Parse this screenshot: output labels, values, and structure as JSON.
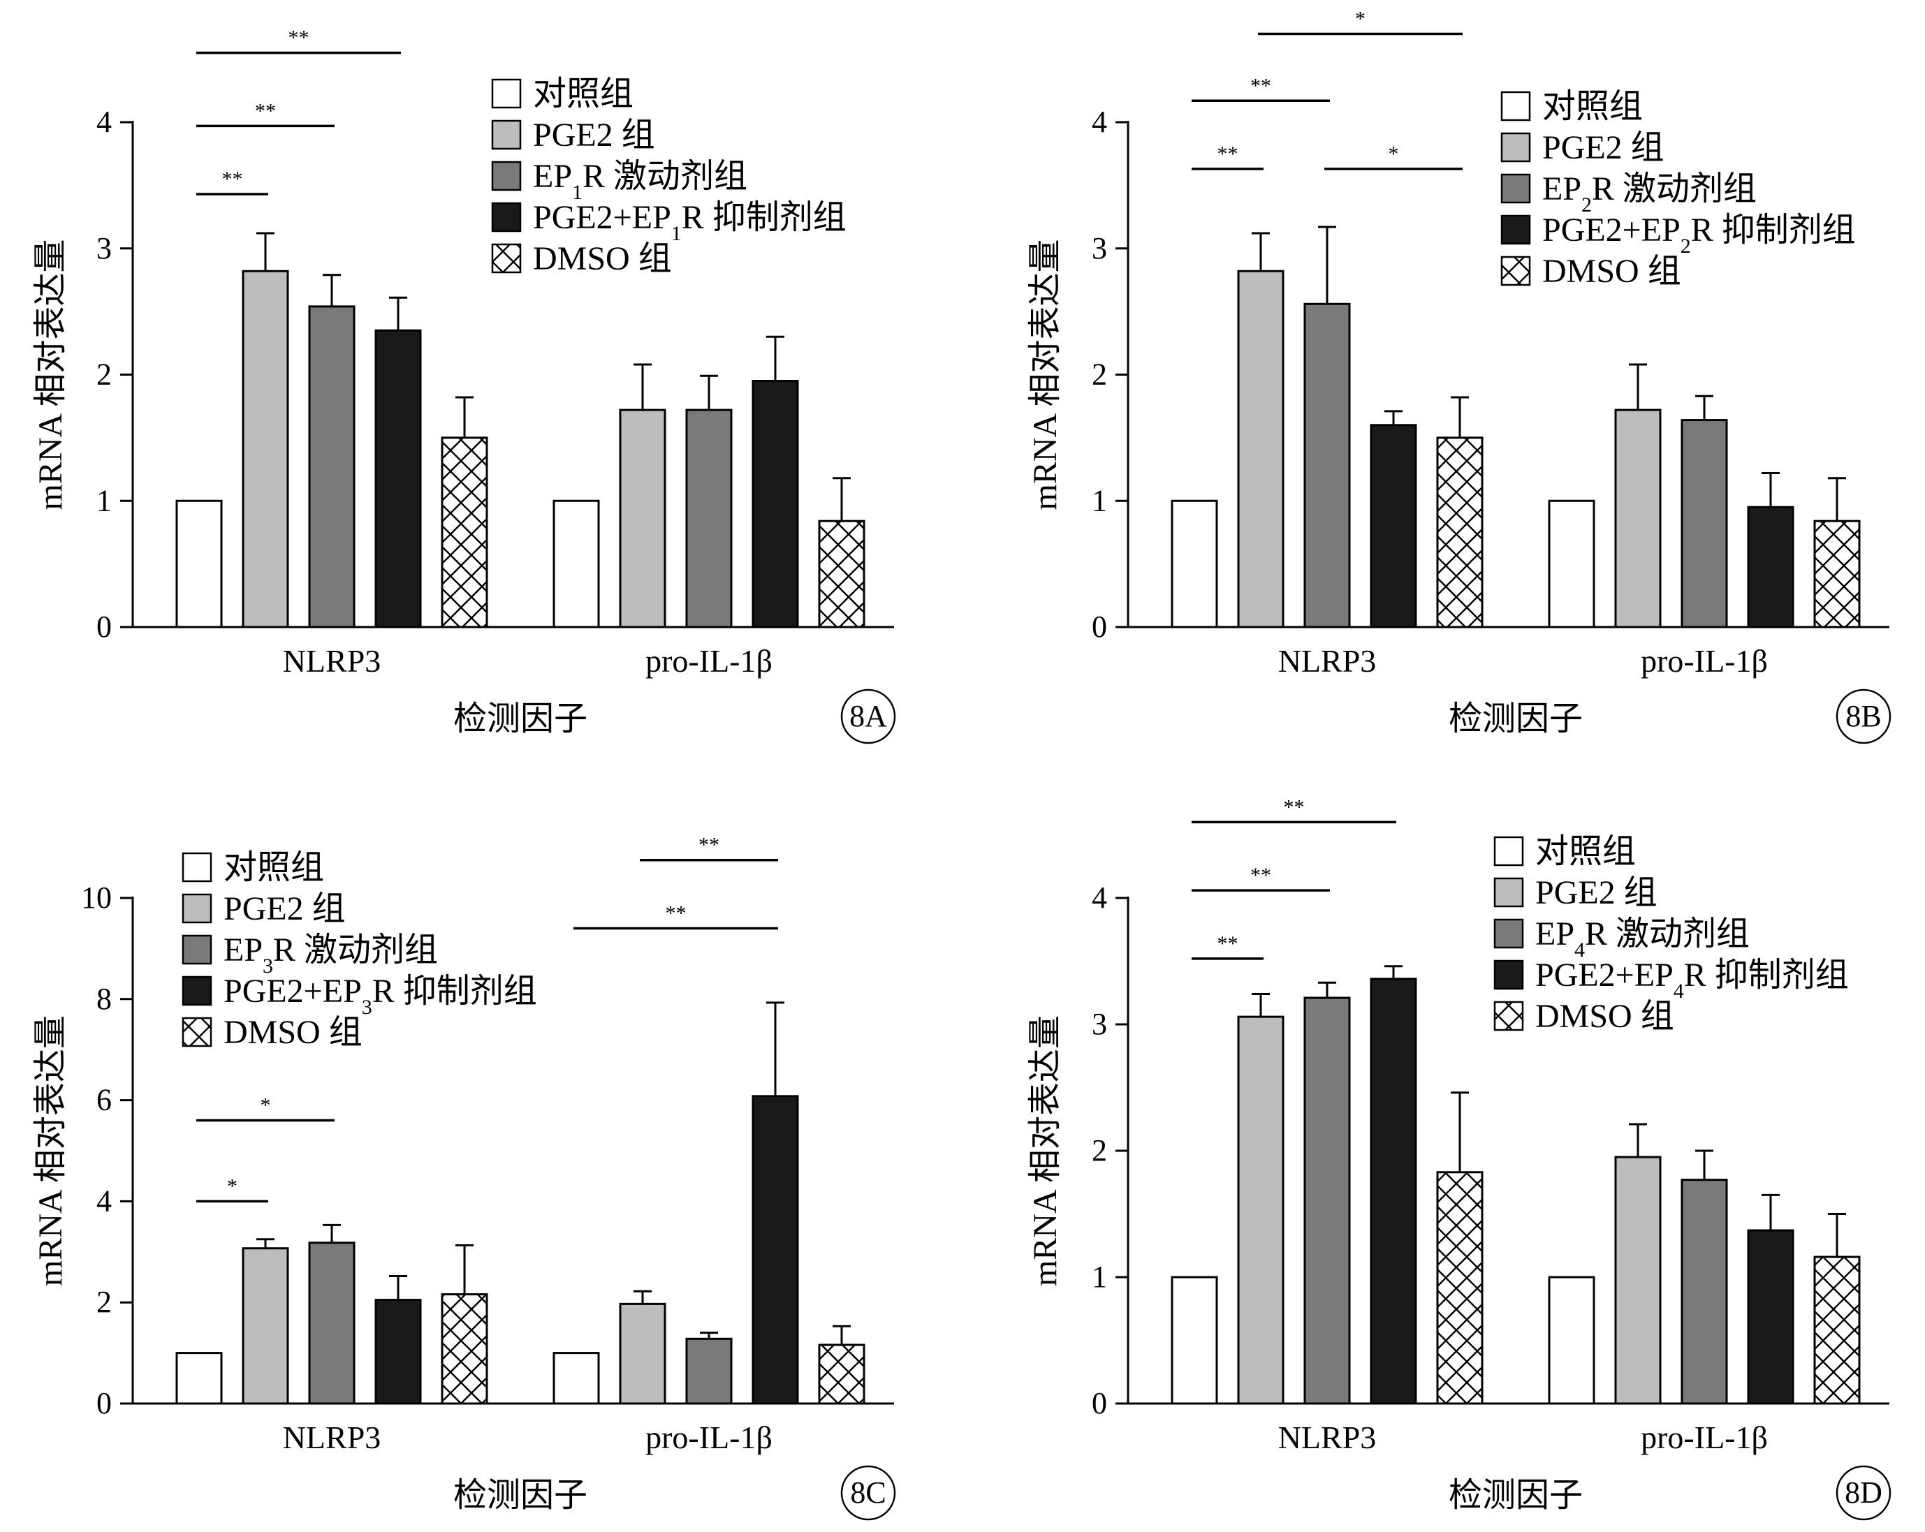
{
  "colors": {
    "control": "#ffffff",
    "pge2": "#bdbdbd",
    "agonist": "#7a7a7a",
    "inhibitor": "#1a1a1a",
    "dmso": "hatched",
    "axis": "#000000"
  },
  "chart_data": [
    {
      "id": "8A",
      "type": "bar",
      "panel_label": "8A",
      "xlabel": "检测因子",
      "ylabel": "mRNA 相对表达量",
      "ylim": [
        0,
        4
      ],
      "yticks": [
        "0",
        "1",
        "2",
        "3",
        "4"
      ],
      "categories": [
        "NLRP3",
        "pro-IL-1β"
      ],
      "legend_position": "top-right",
      "series": [
        {
          "name": "对照组",
          "fill": "control",
          "values": [
            1.0,
            1.0
          ],
          "errors": [
            0,
            0
          ]
        },
        {
          "name": "PGE2 组",
          "fill": "pge2",
          "values": [
            2.82,
            1.72
          ],
          "errors": [
            0.3,
            0.36
          ]
        },
        {
          "name": "EP₁R 激动剂组",
          "fill": "agonist",
          "values": [
            2.54,
            1.72
          ],
          "errors": [
            0.25,
            0.27
          ]
        },
        {
          "name": "PGE2+EP₁R 抑制剂组",
          "fill": "inhibitor",
          "values": [
            2.35,
            1.95
          ],
          "errors": [
            0.26,
            0.35
          ]
        },
        {
          "name": "DMSO 组",
          "fill": "dmso",
          "values": [
            1.5,
            0.84
          ],
          "errors": [
            0.32,
            0.34
          ]
        }
      ],
      "significance": [
        {
          "label": "**",
          "category": 0,
          "from_series": 0,
          "to_series": 1,
          "y": 3.43
        },
        {
          "label": "**",
          "category": 0,
          "from_series": 0,
          "to_series": 2,
          "y": 3.97
        },
        {
          "label": "**",
          "category": 0,
          "from_series": 0,
          "to_series": 3,
          "y": 4.55
        }
      ]
    },
    {
      "id": "8B",
      "type": "bar",
      "panel_label": "8B",
      "xlabel": "检测因子",
      "ylabel": "mRNA 相对表达量",
      "ylim": [
        0,
        4
      ],
      "yticks": [
        "0",
        "1",
        "2",
        "3",
        "4"
      ],
      "categories": [
        "NLRP3",
        "pro-IL-1β"
      ],
      "legend_position": "top-right",
      "series": [
        {
          "name": "对照组",
          "fill": "control",
          "values": [
            1.0,
            1.0
          ],
          "errors": [
            0,
            0
          ]
        },
        {
          "name": "PGE2 组",
          "fill": "pge2",
          "values": [
            2.82,
            1.72
          ],
          "errors": [
            0.3,
            0.36
          ]
        },
        {
          "name": "EP₂R 激动剂组",
          "fill": "agonist",
          "values": [
            2.56,
            1.64
          ],
          "errors": [
            0.61,
            0.19
          ]
        },
        {
          "name": "PGE2+EP₂R 抑制剂组",
          "fill": "inhibitor",
          "values": [
            1.6,
            0.95
          ],
          "errors": [
            0.11,
            0.27
          ]
        },
        {
          "name": "DMSO 组",
          "fill": "dmso",
          "values": [
            1.5,
            0.84
          ],
          "errors": [
            0.32,
            0.34
          ]
        }
      ],
      "significance": [
        {
          "label": "**",
          "category": 0,
          "from_series": 0,
          "to_series": 1,
          "y": 3.63
        },
        {
          "label": "*",
          "category": 0,
          "from_series": 2,
          "to_series": 4,
          "y": 3.63
        },
        {
          "label": "**",
          "category": 0,
          "from_series": 0,
          "to_series": 2,
          "y": 4.17
        },
        {
          "label": "*",
          "category": 0,
          "from_series": 1,
          "to_series": 4,
          "y": 4.7
        }
      ]
    },
    {
      "id": "8C",
      "type": "bar",
      "panel_label": "8C",
      "xlabel": "检测因子",
      "ylabel": "mRNA 相对表达量",
      "ylim": [
        0,
        10
      ],
      "yticks": [
        "0",
        "2",
        "4",
        "6",
        "8",
        "10"
      ],
      "categories": [
        "NLRP3",
        "pro-IL-1β"
      ],
      "legend_position": "top-left",
      "series": [
        {
          "name": "对照组",
          "fill": "control",
          "values": [
            1.0,
            1.0
          ],
          "errors": [
            0,
            0
          ]
        },
        {
          "name": "PGE2 组",
          "fill": "pge2",
          "values": [
            3.07,
            1.97
          ],
          "errors": [
            0.18,
            0.25
          ]
        },
        {
          "name": "EP₃R 激动剂组",
          "fill": "agonist",
          "values": [
            3.18,
            1.28
          ],
          "errors": [
            0.35,
            0.12
          ]
        },
        {
          "name": "PGE2+EP₃R 抑制剂组",
          "fill": "inhibitor",
          "values": [
            2.05,
            6.08
          ],
          "errors": [
            0.47,
            1.85
          ]
        },
        {
          "name": "DMSO 组",
          "fill": "dmso",
          "values": [
            2.16,
            1.16
          ],
          "errors": [
            0.97,
            0.37
          ]
        }
      ],
      "significance": [
        {
          "label": "*",
          "category": 0,
          "from_series": 0,
          "to_series": 1,
          "y": 4.0
        },
        {
          "label": "*",
          "category": 0,
          "from_series": 0,
          "to_series": 2,
          "y": 5.6
        },
        {
          "label": "**",
          "category": 1,
          "from_series": 0,
          "to_series": 3,
          "y": 9.4
        },
        {
          "label": "**",
          "category": 1,
          "from_series": 1,
          "to_series": 3,
          "y": 10.75
        }
      ]
    },
    {
      "id": "8D",
      "type": "bar",
      "panel_label": "8D",
      "xlabel": "检测因子",
      "ylabel": "mRNA 相对表达量",
      "ylim": [
        0,
        4
      ],
      "yticks": [
        "0",
        "1",
        "2",
        "3",
        "4"
      ],
      "categories": [
        "NLRP3",
        "pro-IL-1β"
      ],
      "legend_position": "top-right",
      "series": [
        {
          "name": "对照组",
          "fill": "control",
          "values": [
            1.0,
            1.0
          ],
          "errors": [
            0,
            0
          ]
        },
        {
          "name": "PGE2 组",
          "fill": "pge2",
          "values": [
            3.06,
            1.95
          ],
          "errors": [
            0.18,
            0.26
          ]
        },
        {
          "name": "EP₄R 激动剂组",
          "fill": "agonist",
          "values": [
            3.21,
            1.77
          ],
          "errors": [
            0.12,
            0.23
          ]
        },
        {
          "name": "PGE2+EP₄R 抑制剂组",
          "fill": "inhibitor",
          "values": [
            3.36,
            1.37
          ],
          "errors": [
            0.1,
            0.28
          ]
        },
        {
          "name": "DMSO 组",
          "fill": "dmso",
          "values": [
            1.83,
            1.16
          ],
          "errors": [
            0.63,
            0.34
          ]
        }
      ],
      "significance": [
        {
          "label": "**",
          "category": 0,
          "from_series": 0,
          "to_series": 1,
          "y": 3.52
        },
        {
          "label": "**",
          "category": 0,
          "from_series": 0,
          "to_series": 2,
          "y": 4.06
        },
        {
          "label": "**",
          "category": 0,
          "from_series": 0,
          "to_series": 3,
          "y": 4.6
        }
      ]
    }
  ]
}
